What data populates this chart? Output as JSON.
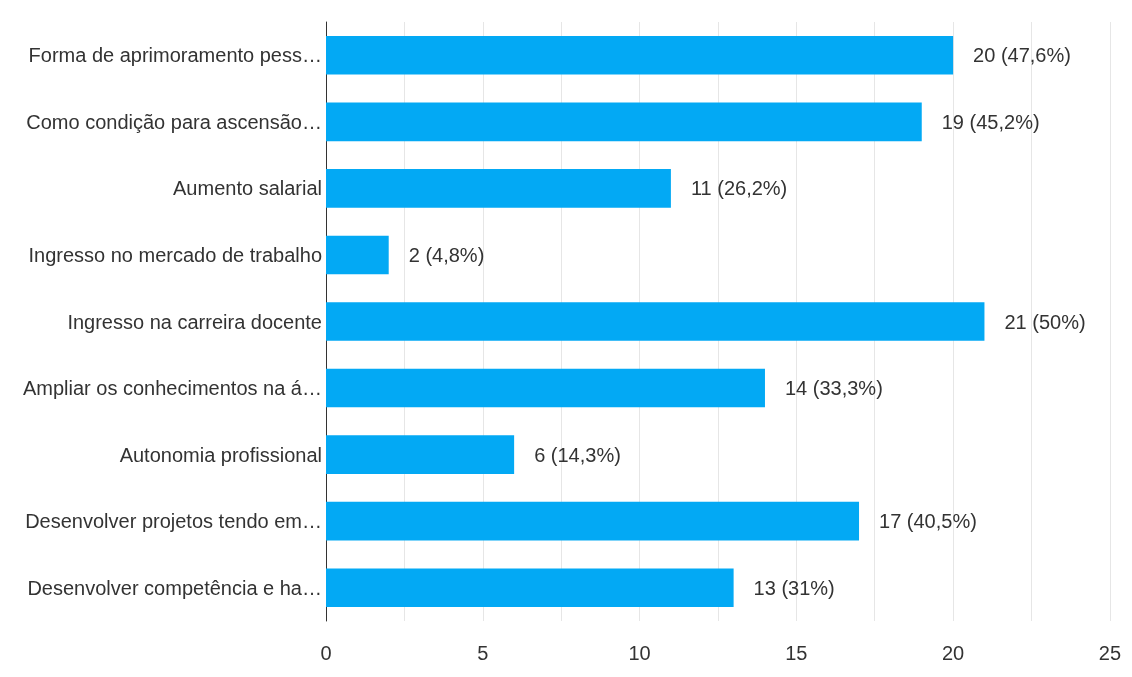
{
  "chart_data": {
    "type": "bar",
    "orientation": "horizontal",
    "categories": [
      "Forma de aprimoramento pess…",
      "Como condição para ascensão…",
      "Aumento salarial",
      "Ingresso no mercado de trabalho",
      "Ingresso na carreira docente",
      "Ampliar os conhecimentos na á…",
      "Autonomia profissional",
      "Desenvolver projetos tendo em…",
      "Desenvolver competência e ha…"
    ],
    "values": [
      20,
      19,
      11,
      2,
      21,
      14,
      6,
      17,
      13
    ],
    "value_labels": [
      "20 (47,6%)",
      "19 (45,2%)",
      "11 (26,2%)",
      "2 (4,8%)",
      "21 (50%)",
      "14 (33,3%)",
      "6 (14,3%)",
      "17 (40,5%)",
      "13 (31%)"
    ],
    "color": "#03a9f4",
    "xlim": [
      0,
      25
    ],
    "xticks": [
      0,
      {
        "value": 2.5,
        "label": null
      },
      5,
      {
        "value": 7.5,
        "label": null
      },
      10,
      {
        "value": 12.5,
        "label": null
      },
      15,
      {
        "value": 17.5,
        "label": null
      },
      20,
      {
        "value": 22.5,
        "label": null
      },
      25
    ],
    "grid": "x"
  }
}
